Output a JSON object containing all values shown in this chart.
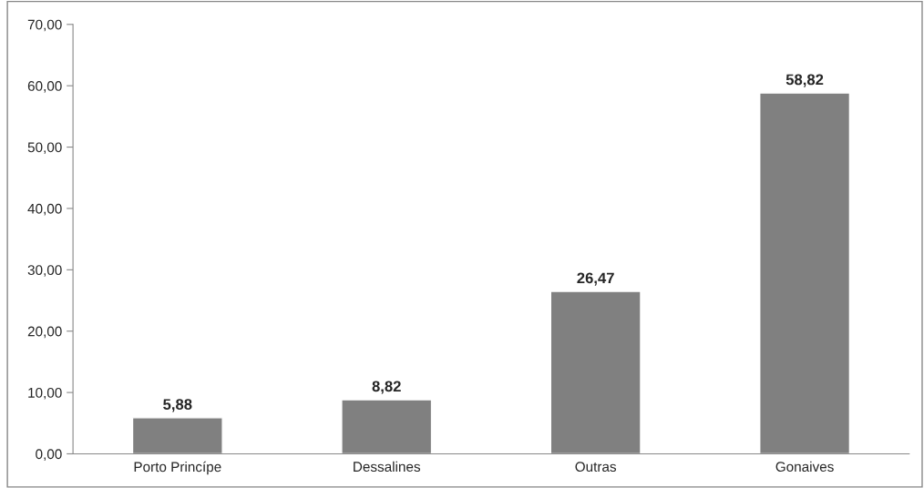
{
  "chart_data": {
    "type": "bar",
    "categories": [
      "Porto Princípe",
      "Dessalines",
      "Outras",
      "Gonaives"
    ],
    "values": [
      5.88,
      8.82,
      26.47,
      58.82
    ],
    "value_labels": [
      "5,88",
      "8,82",
      "26,47",
      "58,82"
    ],
    "color": "#808080",
    "ylim": [
      0,
      70
    ],
    "yticks": [
      {
        "value": 0,
        "label": "0,00"
      },
      {
        "value": 10,
        "label": "10,00"
      },
      {
        "value": 20,
        "label": "20,00"
      },
      {
        "value": 30,
        "label": "30,00"
      },
      {
        "value": 40,
        "label": "40,00"
      },
      {
        "value": 50,
        "label": "50,00"
      },
      {
        "value": 60,
        "label": "60,00"
      },
      {
        "value": 70,
        "label": "70,00"
      }
    ],
    "grid": false,
    "legend": false
  }
}
